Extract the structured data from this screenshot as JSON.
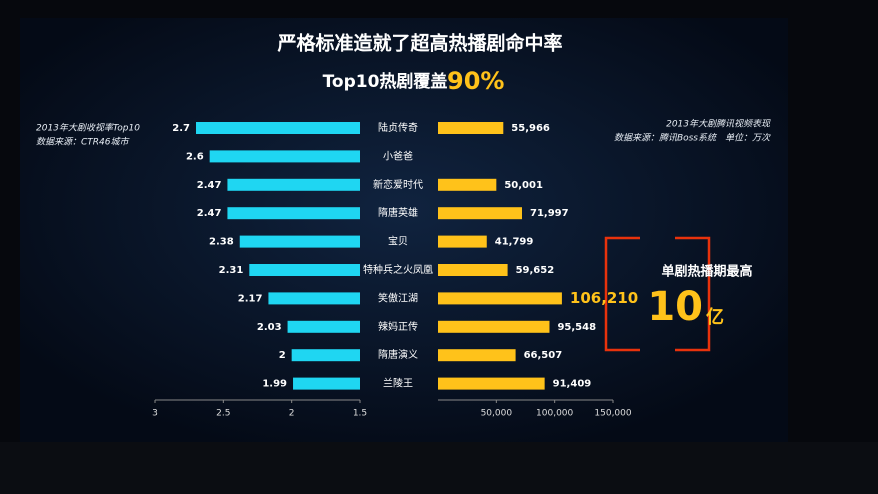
{
  "slide": {
    "title": "严格标准造就了超高热播剧命中率",
    "subtitle": "Top10热剧覆盖",
    "subtitle_highlight": "90%",
    "callout": {
      "text": "单剧热播期最高",
      "number": "10",
      "unit": "亿"
    }
  },
  "chart_data": [
    {
      "type": "bar",
      "orientation": "horizontal",
      "title": "2013年大剧收视率Top10",
      "subtitle": "数据来源：CTR46城市",
      "categories": [
        "陆贞传奇",
        "小爸爸",
        "新恋爱时代",
        "隋唐英雄",
        "宝贝",
        "特种兵之火凤凰",
        "笑傲江湖",
        "辣妈正传",
        "隋唐演义",
        "兰陵王"
      ],
      "values": [
        2.7,
        2.6,
        2.47,
        2.47,
        2.38,
        2.31,
        2.17,
        2.03,
        2.0,
        1.99
      ],
      "color": "#1fd6f2",
      "xlim": [
        3,
        1.5
      ],
      "xticks": [
        3,
        2.5,
        2,
        1.5
      ]
    },
    {
      "type": "bar",
      "orientation": "horizontal",
      "title": "2013年大剧腾讯视频表现",
      "subtitle": "数据来源：腾讯Boss系统　单位：万次",
      "values": [
        55966,
        null,
        50001,
        71997,
        41799,
        59652,
        106210,
        95548,
        66507,
        91409
      ],
      "value_labels": [
        "55,966",
        null,
        "50,001",
        "71,997",
        "41,799",
        "59,652",
        "106,210",
        "95,548",
        "66,507",
        "91,409"
      ],
      "color": "#ffc21a",
      "xlim": [
        0,
        150000
      ],
      "xticks": [
        {
          "value": 50000,
          "label": "50,000"
        },
        {
          "value": 100000,
          "label": "100,000"
        },
        {
          "value": 150000,
          "label": "150,000"
        }
      ]
    }
  ]
}
